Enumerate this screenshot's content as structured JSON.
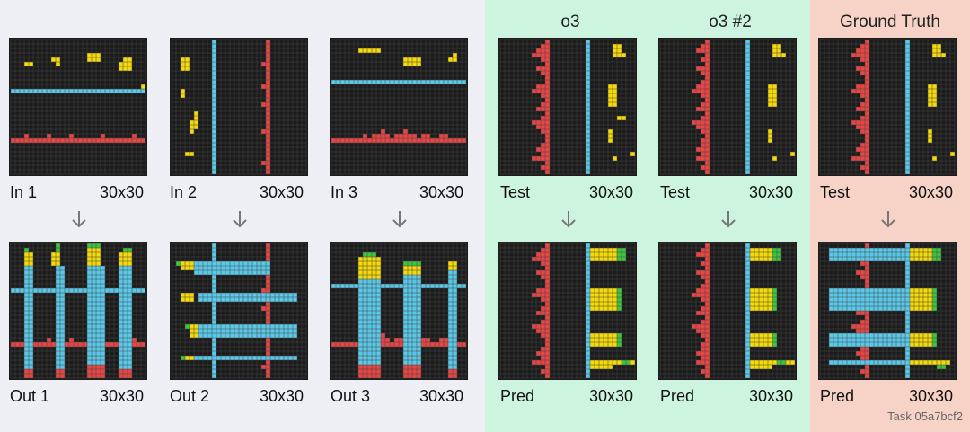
{
  "headers": {
    "o3": "o3",
    "o3_2": "o3 #2",
    "ground_truth": "Ground Truth"
  },
  "task_label": "Task 05a7bcf2",
  "colors": {
    "background": "#eeeff4",
    "o3_panel": "#cdf4de",
    "gt_panel": "#f6d3c6",
    "grid_bg": "#1c1c1c",
    "grid_line": "#444444",
    "yellow": "#f5d90a",
    "blue": "#5ac8e8",
    "red": "#e84545",
    "green": "#3ec43e",
    "arrow": "#777777"
  },
  "panels": [
    {
      "id": "in1",
      "label": "In 1",
      "size": "30x30"
    },
    {
      "id": "in2",
      "label": "In 2",
      "size": "30x30"
    },
    {
      "id": "in3",
      "label": "In 3",
      "size": "30x30"
    },
    {
      "id": "test_o3",
      "label": "Test",
      "size": "30x30"
    },
    {
      "id": "test_o3_2",
      "label": "Test",
      "size": "30x30"
    },
    {
      "id": "test_gt",
      "label": "Test",
      "size": "30x30"
    },
    {
      "id": "out1",
      "label": "Out 1",
      "size": "30x30"
    },
    {
      "id": "out2",
      "label": "Out 2",
      "size": "30x30"
    },
    {
      "id": "out3",
      "label": "Out 3",
      "size": "30x30"
    },
    {
      "id": "pred_o3",
      "label": "Pred",
      "size": "30x30"
    },
    {
      "id": "pred_o3_2",
      "label": "Pred",
      "size": "30x30"
    },
    {
      "id": "pred_gt",
      "label": "Pred",
      "size": "30x30"
    }
  ]
}
